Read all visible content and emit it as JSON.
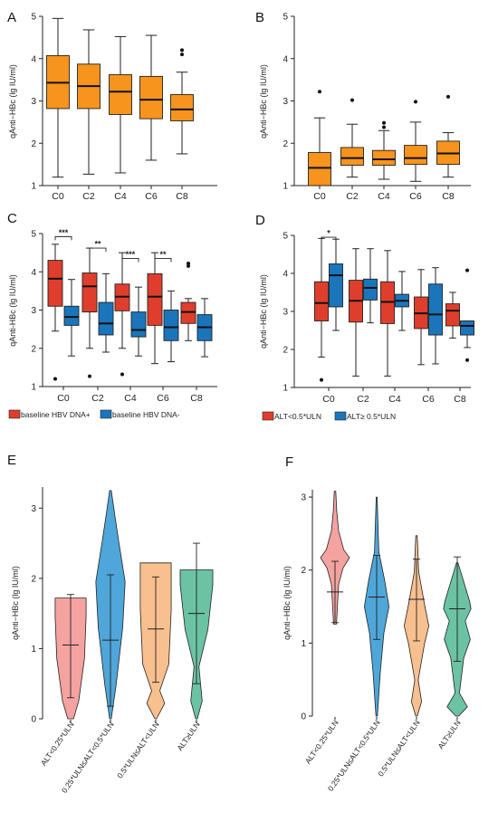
{
  "chart_data": [
    {
      "panel": "A",
      "type": "box",
      "ylabel": "qAnti−HBc (lg IU/ml)",
      "ylim": [
        1,
        5
      ],
      "yticks": [
        1,
        2,
        3,
        4,
        5
      ],
      "categories": [
        "C0",
        "C2",
        "C4",
        "C6",
        "C8"
      ],
      "colors": {
        "box": "#F7941D"
      },
      "boxes": [
        {
          "x": "C0",
          "min": 1.2,
          "q1": 2.82,
          "median": 3.43,
          "q3": 4.07,
          "max": 4.95,
          "outliers": []
        },
        {
          "x": "C2",
          "min": 1.27,
          "q1": 2.82,
          "median": 3.35,
          "q3": 3.87,
          "max": 4.68,
          "outliers": []
        },
        {
          "x": "C4",
          "min": 1.3,
          "q1": 2.68,
          "median": 3.22,
          "q3": 3.62,
          "max": 4.52,
          "outliers": []
        },
        {
          "x": "C6",
          "min": 1.6,
          "q1": 2.58,
          "median": 3.03,
          "q3": 3.58,
          "max": 4.55,
          "outliers": []
        },
        {
          "x": "C8",
          "min": 1.75,
          "q1": 2.53,
          "median": 2.8,
          "q3": 3.15,
          "max": 3.68,
          "outliers": [
            4.1,
            4.2
          ]
        }
      ]
    },
    {
      "panel": "B",
      "type": "box",
      "ylabel": "qAnti−HBc (lg IU/ml)",
      "ylim": [
        1,
        5
      ],
      "yticks": [
        1,
        2,
        3,
        4,
        5
      ],
      "categories": [
        "C0",
        "C2",
        "C4",
        "C6",
        "C8"
      ],
      "colors": {
        "box": "#F7941D"
      },
      "boxes": [
        {
          "x": "C0",
          "min": 1.0,
          "q1": 1.0,
          "median": 1.42,
          "q3": 1.78,
          "max": 2.6,
          "outliers": [
            3.22
          ]
        },
        {
          "x": "C2",
          "min": 1.2,
          "q1": 1.48,
          "median": 1.65,
          "q3": 1.9,
          "max": 2.45,
          "outliers": [
            3.02
          ]
        },
        {
          "x": "C4",
          "min": 1.15,
          "q1": 1.48,
          "median": 1.62,
          "q3": 1.83,
          "max": 2.3,
          "outliers": [
            2.38,
            2.48
          ]
        },
        {
          "x": "C6",
          "min": 1.1,
          "q1": 1.5,
          "median": 1.65,
          "q3": 1.95,
          "max": 2.5,
          "outliers": [
            2.98
          ]
        },
        {
          "x": "C8",
          "min": 1.2,
          "q1": 1.5,
          "median": 1.76,
          "q3": 2.05,
          "max": 2.25,
          "outliers": [
            3.1
          ]
        }
      ]
    },
    {
      "panel": "C",
      "type": "grouped-box",
      "ylabel": "qAnti-HBc (lg IU/ml)",
      "ylim": [
        1,
        5
      ],
      "yticks": [
        1,
        2,
        3,
        4,
        5
      ],
      "categories": [
        "C0",
        "C2",
        "C4",
        "C6",
        "C8"
      ],
      "legend_position": "bottom",
      "series": [
        {
          "name": "baseline HBV DNA+",
          "color": "#E03E2D",
          "boxes": [
            {
              "min": 2.45,
              "q1": 3.1,
              "median": 3.82,
              "q3": 4.3,
              "max": 4.72,
              "outliers": [
                1.2
              ]
            },
            {
              "min": 2.0,
              "q1": 2.95,
              "median": 3.62,
              "q3": 3.97,
              "max": 4.62,
              "outliers": [
                1.27
              ]
            },
            {
              "min": 2.0,
              "q1": 2.98,
              "median": 3.35,
              "q3": 3.68,
              "max": 4.5,
              "outliers": [
                1.32
              ]
            },
            {
              "min": 1.6,
              "q1": 2.6,
              "median": 3.35,
              "q3": 3.95,
              "max": 4.5,
              "outliers": []
            },
            {
              "min": 2.2,
              "q1": 2.65,
              "median": 2.95,
              "q3": 3.2,
              "max": 3.3,
              "outliers": [
                4.15,
                4.22
              ]
            }
          ]
        },
        {
          "name": "baseline HBV DNA-",
          "color": "#1B75BB",
          "boxes": [
            {
              "min": 1.8,
              "q1": 2.6,
              "median": 2.82,
              "q3": 3.1,
              "max": 3.8,
              "outliers": []
            },
            {
              "min": 1.9,
              "q1": 2.35,
              "median": 2.65,
              "q3": 3.2,
              "max": 3.95,
              "outliers": []
            },
            {
              "min": 1.8,
              "q1": 2.3,
              "median": 2.48,
              "q3": 2.95,
              "max": 3.6,
              "outliers": []
            },
            {
              "min": 1.65,
              "q1": 2.2,
              "median": 2.55,
              "q3": 3.0,
              "max": 3.5,
              "outliers": []
            },
            {
              "min": 1.78,
              "q1": 2.2,
              "median": 2.55,
              "q3": 2.88,
              "max": 3.3,
              "outliers": []
            }
          ]
        }
      ],
      "annotations": [
        {
          "category": "C0",
          "text": "***",
          "level": 4.92
        },
        {
          "category": "C2",
          "text": "**",
          "level": 4.62
        },
        {
          "category": "C4",
          "text": "***",
          "level": 4.35
        },
        {
          "category": "C6",
          "text": "**",
          "level": 4.35
        }
      ]
    },
    {
      "panel": "D",
      "type": "grouped-box",
      "ylabel": "qAnti−HBc (lg IU/ml)",
      "ylim": [
        1,
        5
      ],
      "yticks": [
        1,
        2,
        3,
        4,
        5
      ],
      "categories": [
        "C0",
        "C2",
        "C4",
        "C6",
        "C8"
      ],
      "legend_position": "bottom",
      "series": [
        {
          "name": "ALT<0.5*ULN",
          "color": "#E03E2D",
          "boxes": [
            {
              "min": 1.8,
              "q1": 2.75,
              "median": 3.22,
              "q3": 3.78,
              "max": 4.92,
              "outliers": [
                1.2
              ]
            },
            {
              "min": 1.3,
              "q1": 2.72,
              "median": 3.28,
              "q3": 3.82,
              "max": 4.65,
              "outliers": []
            },
            {
              "min": 1.3,
              "q1": 2.68,
              "median": 3.25,
              "q3": 3.78,
              "max": 4.6,
              "outliers": []
            },
            {
              "min": 1.6,
              "q1": 2.55,
              "median": 2.95,
              "q3": 3.38,
              "max": 4.1,
              "outliers": []
            },
            {
              "min": 2.3,
              "q1": 2.62,
              "median": 3.02,
              "q3": 3.2,
              "max": 3.5,
              "outliers": []
            }
          ]
        },
        {
          "name": "ALT≥ 0.5*ULN",
          "color": "#1B75BB",
          "boxes": [
            {
              "min": 2.5,
              "q1": 3.12,
              "median": 3.95,
              "q3": 4.25,
              "max": 4.9,
              "outliers": []
            },
            {
              "min": 2.7,
              "q1": 3.3,
              "median": 3.62,
              "q3": 3.85,
              "max": 4.65,
              "outliers": []
            },
            {
              "min": 2.5,
              "q1": 3.12,
              "median": 3.28,
              "q3": 3.45,
              "max": 4.05,
              "outliers": []
            },
            {
              "min": 1.62,
              "q1": 2.38,
              "median": 2.92,
              "q3": 3.72,
              "max": 4.15,
              "outliers": []
            },
            {
              "min": 2.05,
              "q1": 2.38,
              "median": 2.62,
              "q3": 2.75,
              "max": 2.75,
              "outliers": [
                4.08,
                1.72
              ]
            }
          ]
        }
      ],
      "annotations": [
        {
          "category": "C0",
          "text": "*",
          "level": 4.95
        }
      ]
    },
    {
      "panel": "E",
      "type": "violin",
      "ylabel": "qAnti−HBc (lg IU/ml)",
      "ylim": [
        0,
        3.3
      ],
      "yticks": [
        0,
        1,
        2,
        3
      ],
      "categories": [
        "ALT<0.25*ULN",
        "0.25*ULN≤ALT<0.5*ULN",
        "0.5*ULN≤ALT<ULN",
        "ALT≥ULN"
      ],
      "violins": [
        {
          "x": "ALT<0.25*ULN",
          "color": "#F4A3A0",
          "min": 0.3,
          "mean": 1.05,
          "max": 1.77
        },
        {
          "x": "0.25*ULN≤ALT<0.5*ULN",
          "color": "#4FA6D9",
          "min": 0.18,
          "mean": 1.12,
          "max": 2.05
        },
        {
          "x": "0.5*ULN≤ALT<ULN",
          "color": "#F8C08F",
          "min": 0.52,
          "mean": 1.28,
          "max": 2.02
        },
        {
          "x": "ALT≥ULN",
          "color": "#6CC3A3",
          "min": 0.5,
          "mean": 1.5,
          "max": 2.5
        }
      ]
    },
    {
      "panel": "F",
      "type": "violin",
      "ylabel": "qAnti−HBc (lg IU/ml)",
      "ylim": [
        0,
        3.1
      ],
      "yticks": [
        0,
        1,
        2,
        3
      ],
      "categories": [
        "ALT<0.25*ULN",
        "0.25*ULN≤ALT<0.5*ULN",
        "0.5*ULN≤ALT<ULN",
        "ALT≥ULN"
      ],
      "violins": [
        {
          "x": "ALT<0.25*ULN",
          "color": "#F4A3A0",
          "min": 1.28,
          "mean": 1.7,
          "max": 2.12
        },
        {
          "x": "0.25*ULN≤ALT<0.5*ULN",
          "color": "#4FA6D9",
          "min": 1.05,
          "mean": 1.63,
          "max": 2.2
        },
        {
          "x": "0.5*ULN≤ALT<ULN",
          "color": "#F8C08F",
          "min": 1.03,
          "mean": 1.6,
          "max": 2.15
        },
        {
          "x": "ALT≥ULN",
          "color": "#6CC3A3",
          "min": 0.75,
          "mean": 1.47,
          "max": 2.18
        }
      ]
    }
  ]
}
